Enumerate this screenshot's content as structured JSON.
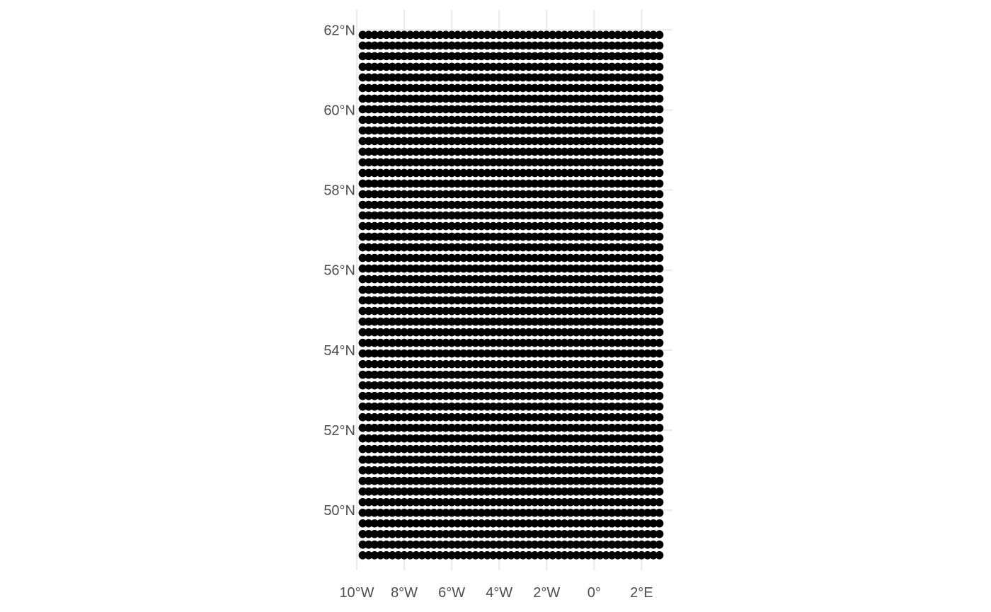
{
  "chart_data": {
    "type": "scatter",
    "title": "",
    "xlabel": "",
    "ylabel": "",
    "xlim": [
      -10.0,
      3.3
    ],
    "ylim": [
      48.5,
      62.5
    ],
    "grid": true,
    "point_color": "#000000",
    "grid_color": "#ebebeb",
    "x_ticks": [
      {
        "value": -10,
        "label": "10°W"
      },
      {
        "value": -8,
        "label": "8°W"
      },
      {
        "value": -6,
        "label": "6°W"
      },
      {
        "value": -4,
        "label": "4°W"
      },
      {
        "value": -2,
        "label": "2°W"
      },
      {
        "value": 0,
        "label": "0°"
      },
      {
        "value": 2,
        "label": "2°E"
      }
    ],
    "y_ticks": [
      {
        "value": 50,
        "label": "50°N"
      },
      {
        "value": 52,
        "label": "52°N"
      },
      {
        "value": 54,
        "label": "54°N"
      },
      {
        "value": 56,
        "label": "56°N"
      },
      {
        "value": 58,
        "label": "58°N"
      },
      {
        "value": 60,
        "label": "60°N"
      },
      {
        "value": 62,
        "label": "62°N"
      }
    ],
    "grid_points": {
      "lon_start": -9.75,
      "lon_end": 2.75,
      "lon_step": 0.25,
      "lat_start": 48.875,
      "lat_end": 61.875,
      "lat_step": 0.265306
    }
  }
}
